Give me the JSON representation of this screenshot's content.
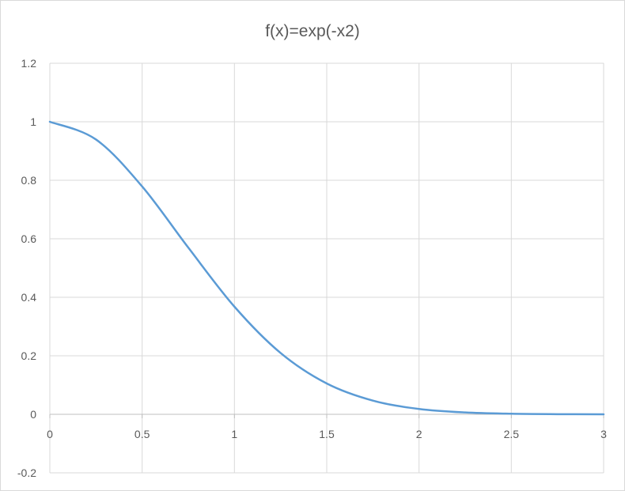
{
  "chart_data": {
    "type": "line",
    "title": "f(x)=exp(-x2)",
    "xlabel": "",
    "ylabel": "",
    "xlim": [
      0,
      3
    ],
    "ylim": [
      -0.2,
      1.2
    ],
    "x_ticks": [
      "0",
      "0.5",
      "1",
      "1.5",
      "2",
      "2.5",
      "3"
    ],
    "y_ticks": [
      "-0.2",
      "0",
      "0.2",
      "0.4",
      "0.6",
      "0.8",
      "1",
      "1.2"
    ],
    "grid": true,
    "legend": "none",
    "series": [
      {
        "color": "#5b9bd5",
        "x": [
          0,
          0.25,
          0.5,
          0.75,
          1,
          1.25,
          1.5,
          1.75,
          2,
          2.25,
          2.5,
          2.75,
          3
        ],
        "y": [
          1,
          0.9394,
          0.7788,
          0.5698,
          0.3679,
          0.2096,
          0.1054,
          0.0468,
          0.0183,
          0.0063,
          0.0019,
          0.0005,
          0.0001
        ]
      }
    ]
  }
}
